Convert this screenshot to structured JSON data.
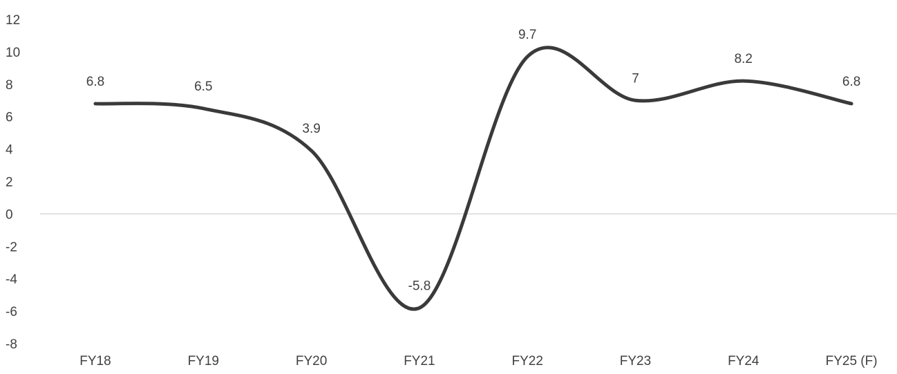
{
  "chart_data": {
    "type": "line",
    "categories": [
      "FY18",
      "FY19",
      "FY20",
      "FY21",
      "FY22",
      "FY23",
      "FY24",
      "FY25 (F)"
    ],
    "series": [
      {
        "values": [
          6.8,
          6.5,
          3.9,
          -5.8,
          9.7,
          7,
          8.2,
          6.8
        ],
        "data_labels": [
          "6.8",
          "6.5",
          "3.9",
          "-5.8",
          "9.7",
          "7",
          "8.2",
          "6.8"
        ]
      }
    ],
    "ylim": [
      -8,
      12
    ],
    "yticks": [
      12,
      10,
      8,
      6,
      4,
      2,
      0,
      -2,
      -4,
      -6,
      -8
    ],
    "ytick_labels": [
      "12",
      "10",
      "8",
      "6",
      "4",
      "2",
      "0",
      "-2",
      "-4",
      "-6",
      "-8"
    ],
    "smoothed": true,
    "grid": false,
    "zero_line": true,
    "line_color": "#3a3a3a",
    "text_color": "#404040",
    "zero_line_color": "#d9d9d9",
    "title": "",
    "xlabel": "",
    "ylabel": ""
  }
}
